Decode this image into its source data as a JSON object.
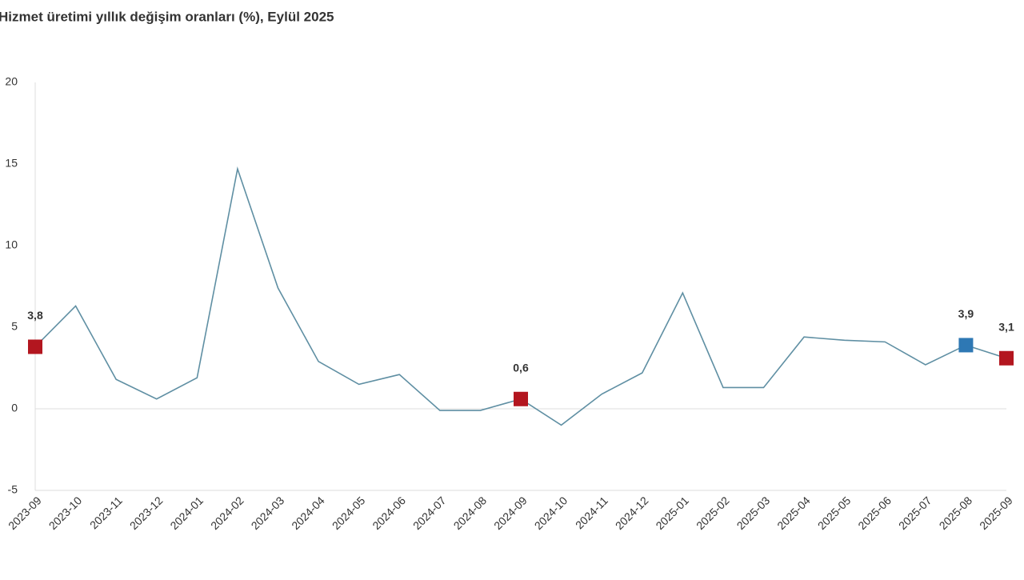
{
  "chart_data": {
    "type": "line",
    "title": "Hizmet üretimi yıllık değişim oranları (%), Eylül 2025",
    "categories": [
      "2023-09",
      "2023-10",
      "2023-11",
      "2023-12",
      "2024-01",
      "2024-02",
      "2024-03",
      "2024-04",
      "2024-05",
      "2024-06",
      "2024-07",
      "2024-08",
      "2024-09",
      "2024-10",
      "2024-11",
      "2024-12",
      "2025-01",
      "2025-02",
      "2025-03",
      "2025-04",
      "2025-05",
      "2025-06",
      "2025-07",
      "2025-08",
      "2025-09"
    ],
    "series": [
      {
        "color": "#5f8fa3",
        "values": [
          3.8,
          6.3,
          1.8,
          0.6,
          1.9,
          14.7,
          7.4,
          2.9,
          1.5,
          2.1,
          -0.1,
          -0.1,
          0.6,
          -1.0,
          0.9,
          2.2,
          7.1,
          1.3,
          1.3,
          4.4,
          4.2,
          4.1,
          2.7,
          3.9,
          3.1
        ],
        "value_labels": [
          "3,8",
          null,
          null,
          null,
          null,
          null,
          null,
          null,
          null,
          null,
          null,
          null,
          "0,6",
          null,
          null,
          null,
          null,
          null,
          null,
          null,
          null,
          null,
          null,
          "3,9",
          "3,1"
        ],
        "marker_colors": [
          "#b3161f",
          null,
          null,
          null,
          null,
          null,
          null,
          null,
          null,
          null,
          null,
          null,
          "#b3161f",
          null,
          null,
          null,
          null,
          null,
          null,
          null,
          null,
          null,
          null,
          "#2e78b4",
          "#b3161f"
        ]
      }
    ],
    "ylim": [
      -5,
      20
    ],
    "yticks": [
      -5,
      0,
      5,
      10,
      15,
      20
    ],
    "grid": false
  }
}
